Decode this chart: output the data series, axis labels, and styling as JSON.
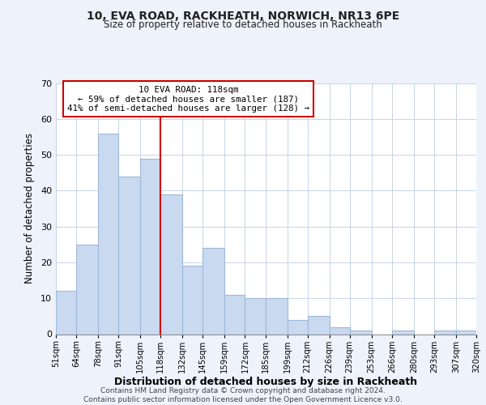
{
  "title": "10, EVA ROAD, RACKHEATH, NORWICH, NR13 6PE",
  "subtitle": "Size of property relative to detached houses in Rackheath",
  "xlabel": "Distribution of detached houses by size in Rackheath",
  "ylabel": "Number of detached properties",
  "footer_lines": [
    "Contains HM Land Registry data © Crown copyright and database right 2024.",
    "Contains public sector information licensed under the Open Government Licence v3.0."
  ],
  "bin_edges": [
    51,
    64,
    78,
    91,
    105,
    118,
    132,
    145,
    159,
    172,
    185,
    199,
    212,
    226,
    239,
    253,
    266,
    280,
    293,
    307,
    320
  ],
  "bin_labels": [
    "51sqm",
    "64sqm",
    "78sqm",
    "91sqm",
    "105sqm",
    "118sqm",
    "132sqm",
    "145sqm",
    "159sqm",
    "172sqm",
    "185sqm",
    "199sqm",
    "212sqm",
    "226sqm",
    "239sqm",
    "253sqm",
    "266sqm",
    "280sqm",
    "293sqm",
    "307sqm",
    "320sqm"
  ],
  "counts": [
    12,
    25,
    56,
    44,
    49,
    39,
    19,
    24,
    11,
    10,
    10,
    4,
    5,
    2,
    1,
    0,
    1,
    0,
    1,
    1
  ],
  "bar_color": "#c8d9f0",
  "bar_edge_color": "#a0b8d8",
  "vline_x": 118,
  "vline_color": "#cc0000",
  "annotation_box_edge_color": "#cc0000",
  "annotation_lines": [
    "10 EVA ROAD: 118sqm",
    "← 59% of detached houses are smaller (187)",
    "41% of semi-detached houses are larger (128) →"
  ],
  "ylim": [
    0,
    70
  ],
  "yticks": [
    0,
    10,
    20,
    30,
    40,
    50,
    60,
    70
  ],
  "background_color": "#eef2fb",
  "plot_bg_color": "#ffffff",
  "grid_color": "#c8d4e8"
}
